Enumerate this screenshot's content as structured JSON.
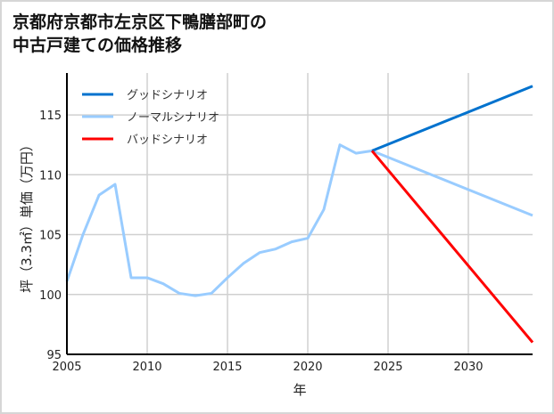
{
  "chart_data": {
    "type": "line",
    "title_lines": [
      "京都府京都市左京区下鴨膳部町の",
      "中古戸建ての価格推移"
    ],
    "xlabel": "年",
    "ylabel": "坪（3.3㎡）単価（万円）",
    "xlim": [
      2005,
      2034
    ],
    "ylim": [
      95,
      118.5
    ],
    "xticks": [
      2005,
      2010,
      2015,
      2020,
      2025,
      2030
    ],
    "yticks": [
      95,
      100,
      105,
      110,
      115
    ],
    "grid": true,
    "legend_position": "top-left",
    "series": [
      {
        "name": "グッドシナリオ",
        "color": "#0072CE",
        "x": [
          2024,
          2034
        ],
        "y": [
          112.0,
          117.4
        ]
      },
      {
        "name": "ノーマルシナリオ",
        "color": "#99CCFF",
        "x": [
          2005,
          2006,
          2007,
          2008,
          2009,
          2010,
          2011,
          2012,
          2013,
          2014,
          2015,
          2016,
          2017,
          2018,
          2019,
          2020,
          2021,
          2022,
          2023,
          2024,
          2034
        ],
        "y": [
          101.1,
          105.0,
          108.3,
          109.2,
          101.4,
          101.4,
          100.9,
          100.1,
          99.9,
          100.1,
          101.4,
          102.6,
          103.5,
          103.8,
          104.4,
          104.7,
          107.1,
          112.5,
          111.8,
          112.0,
          106.6
        ]
      },
      {
        "name": "バッドシナリオ",
        "color": "#FF0000",
        "x": [
          2024,
          2034
        ],
        "y": [
          112.0,
          96.0
        ]
      }
    ]
  }
}
